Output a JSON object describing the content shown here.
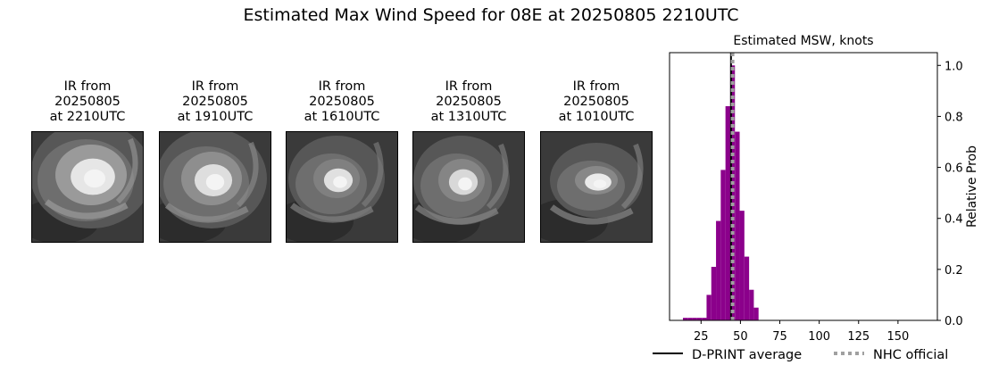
{
  "title": "Estimated Max Wind Speed for 08E at 20250805 2210UTC",
  "panels": [
    {
      "line1": "IR from",
      "line2": "20250805",
      "line3": "at 2210UTC"
    },
    {
      "line1": "IR from",
      "line2": "20250805",
      "line3": "at 1910UTC"
    },
    {
      "line1": "IR from",
      "line2": "20250805",
      "line3": "at 1610UTC"
    },
    {
      "line1": "IR from",
      "line2": "20250805",
      "line3": "at 1310UTC"
    },
    {
      "line1": "IR from",
      "line2": "20250805",
      "line3": "at 1010UTC"
    }
  ],
  "chart_data": {
    "type": "bar",
    "title": "Estimated MSW, knots",
    "xlabel": "",
    "ylabel": "Relative Prob",
    "xlim": [
      5,
      175
    ],
    "ylim": [
      0,
      1.05
    ],
    "xticks": [
      25,
      50,
      75,
      100,
      125,
      150
    ],
    "yticks": [
      0.0,
      0.2,
      0.4,
      0.6,
      0.8,
      1.0
    ],
    "ytick_labels": [
      "0.0",
      "0.2",
      "0.4",
      "0.6",
      "0.8",
      "1.0"
    ],
    "y_axis_side": "right",
    "bin_width": 3,
    "bins": [
      {
        "x": 15,
        "value": 0.01
      },
      {
        "x": 18,
        "value": 0.01
      },
      {
        "x": 21,
        "value": 0.01
      },
      {
        "x": 24,
        "value": 0.01
      },
      {
        "x": 27,
        "value": 0.01
      },
      {
        "x": 30,
        "value": 0.1
      },
      {
        "x": 33,
        "value": 0.21
      },
      {
        "x": 36,
        "value": 0.39
      },
      {
        "x": 39,
        "value": 0.59
      },
      {
        "x": 42,
        "value": 0.84
      },
      {
        "x": 45,
        "value": 1.0
      },
      {
        "x": 48,
        "value": 0.74
      },
      {
        "x": 51,
        "value": 0.43
      },
      {
        "x": 54,
        "value": 0.25
      },
      {
        "x": 57,
        "value": 0.12
      },
      {
        "x": 60,
        "value": 0.05
      }
    ],
    "bar_color": "#8b008b",
    "dprint_average": 44,
    "nhc_official": 45,
    "legend": [
      {
        "label": "D-PRINT average",
        "style": "solid",
        "color": "#000000"
      },
      {
        "label": "NHC official",
        "style": "dotted",
        "color": "#a0a0a0"
      }
    ],
    "legend_placement": "bottom"
  }
}
